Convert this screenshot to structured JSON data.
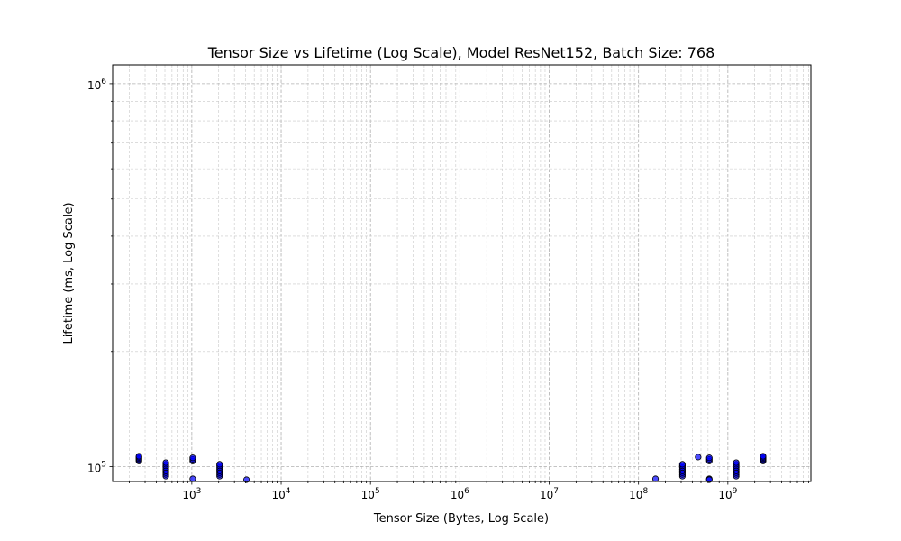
{
  "chart_data": {
    "type": "scatter",
    "title": "Tensor Size vs Lifetime (Log Scale), Model ResNet152, Batch Size: 768",
    "xlabel": "Tensor Size (Bytes, Log Scale)",
    "ylabel": "Lifetime (ms, Log Scale)",
    "xscale": "log",
    "yscale": "log",
    "xlim": [
      130,
      8500000000
    ],
    "ylim": [
      91500,
      1120000
    ],
    "grid": true,
    "x_ticks": [
      {
        "base": "10",
        "exp": "3",
        "value": 1000
      },
      {
        "base": "10",
        "exp": "4",
        "value": 10000
      },
      {
        "base": "10",
        "exp": "5",
        "value": 100000
      },
      {
        "base": "10",
        "exp": "6",
        "value": 1000000
      },
      {
        "base": "10",
        "exp": "7",
        "value": 10000000
      },
      {
        "base": "10",
        "exp": "8",
        "value": 100000000
      },
      {
        "base": "10",
        "exp": "9",
        "value": 1000000000
      }
    ],
    "y_ticks": [
      {
        "base": "10",
        "exp": "5",
        "value": 100000
      },
      {
        "base": "10",
        "exp": "6",
        "value": 1000000
      }
    ],
    "points": [
      {
        "x": 256,
        "y": 103500
      },
      {
        "x": 256,
        "y": 104300
      },
      {
        "x": 256,
        "y": 105000
      },
      {
        "x": 256,
        "y": 105800
      },
      {
        "x": 256,
        "y": 106500
      },
      {
        "x": 512,
        "y": 94500
      },
      {
        "x": 512,
        "y": 95500
      },
      {
        "x": 512,
        "y": 96500
      },
      {
        "x": 512,
        "y": 97500
      },
      {
        "x": 512,
        "y": 98500
      },
      {
        "x": 512,
        "y": 99500
      },
      {
        "x": 512,
        "y": 100500
      },
      {
        "x": 512,
        "y": 101500
      },
      {
        "x": 512,
        "y": 102500
      },
      {
        "x": 1024,
        "y": 103500
      },
      {
        "x": 1024,
        "y": 104500
      },
      {
        "x": 1024,
        "y": 105500
      },
      {
        "x": 1024,
        "y": 93000
      },
      {
        "x": 2048,
        "y": 94500
      },
      {
        "x": 2048,
        "y": 95500
      },
      {
        "x": 2048,
        "y": 96500
      },
      {
        "x": 2048,
        "y": 97500
      },
      {
        "x": 2048,
        "y": 98500
      },
      {
        "x": 2048,
        "y": 99500
      },
      {
        "x": 2048,
        "y": 100500
      },
      {
        "x": 2048,
        "y": 101500
      },
      {
        "x": 4096,
        "y": 92500
      },
      {
        "x": 155000000,
        "y": 93000
      },
      {
        "x": 310000000,
        "y": 94500
      },
      {
        "x": 310000000,
        "y": 95500
      },
      {
        "x": 310000000,
        "y": 96500
      },
      {
        "x": 310000000,
        "y": 97500
      },
      {
        "x": 310000000,
        "y": 98500
      },
      {
        "x": 310000000,
        "y": 99500
      },
      {
        "x": 310000000,
        "y": 100500
      },
      {
        "x": 310000000,
        "y": 101500
      },
      {
        "x": 465000000,
        "y": 106000
      },
      {
        "x": 620000000,
        "y": 103500
      },
      {
        "x": 620000000,
        "y": 104500
      },
      {
        "x": 620000000,
        "y": 105500
      },
      {
        "x": 620000000,
        "y": 93000
      },
      {
        "x": 620000000,
        "y": 92500
      },
      {
        "x": 1240000000,
        "y": 94500
      },
      {
        "x": 1240000000,
        "y": 95500
      },
      {
        "x": 1240000000,
        "y": 96500
      },
      {
        "x": 1240000000,
        "y": 97500
      },
      {
        "x": 1240000000,
        "y": 98500
      },
      {
        "x": 1240000000,
        "y": 99500
      },
      {
        "x": 1240000000,
        "y": 100500
      },
      {
        "x": 1240000000,
        "y": 101500
      },
      {
        "x": 1240000000,
        "y": 102500
      },
      {
        "x": 2480000000,
        "y": 103500
      },
      {
        "x": 2480000000,
        "y": 104300
      },
      {
        "x": 2480000000,
        "y": 105000
      },
      {
        "x": 2480000000,
        "y": 105800
      },
      {
        "x": 2480000000,
        "y": 106500
      }
    ]
  }
}
